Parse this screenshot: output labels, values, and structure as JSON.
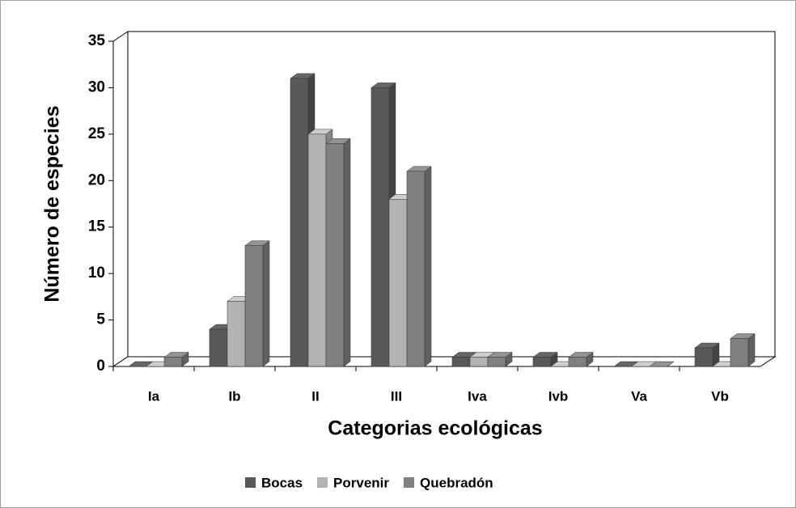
{
  "chart_data": {
    "type": "bar3d",
    "x_label": "Categorias ecológicas",
    "y_label": "Número de especies",
    "categories": [
      "Ia",
      "Ib",
      "II",
      "III",
      "Iva",
      "Ivb",
      "Va",
      "Vb"
    ],
    "series": [
      {
        "name": "Bocas",
        "color": "#595959",
        "values": [
          0,
          4,
          31,
          30,
          1,
          1,
          0,
          2
        ]
      },
      {
        "name": "Porvenir",
        "color": "#b3b3b3",
        "values": [
          0,
          7,
          25,
          18,
          1,
          0,
          0,
          0
        ]
      },
      {
        "name": "Quebradón",
        "color": "#808080",
        "values": [
          1,
          13,
          24,
          21,
          1,
          1,
          0,
          3
        ]
      }
    ],
    "ylim": [
      0,
      35
    ],
    "yticks": [
      0,
      5,
      10,
      15,
      20,
      25,
      30,
      35
    ],
    "legend": "bottom"
  }
}
